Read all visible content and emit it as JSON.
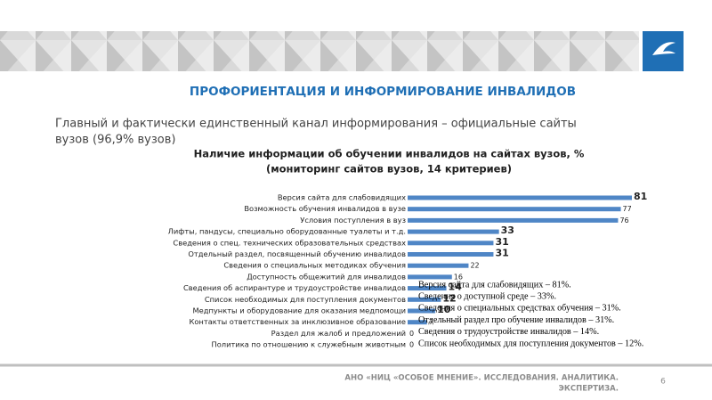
{
  "slide": {
    "title": "ПРОФОРИЕНТАЦИЯ И ИНФОРМИРОВАНИЕ ИНВАЛИДОВ",
    "subtitle_lines": [
      "Главный и фактически единственный канал информирования – официальные сайты",
      "вузов (96,9% вузов)"
    ],
    "notes": [
      "Версия сайта для слабовидящих – 81%.",
      "Сведения о доступной среде – 33%.",
      "Сведения о специальных  средствах обучения – 31%.",
      "Отдельный раздел про обучение инвалидов – 31%.",
      "Сведения о трудоустройстве инвалидов – 14%.",
      "Список необходимых для поступления документов – 12%."
    ],
    "footer_lines": [
      "АНО «НИЦ «ОСОБОЕ МНЕНИЕ». ИССЛЕДОВАНИЯ. АНАЛИТИКА.",
      "ЭКСПЕРТИЗА."
    ],
    "page_number": "6"
  },
  "chart_data": {
    "type": "hbar",
    "title_lines": [
      "Наличие информации об обучении инвалидов на сайтах вузов, %",
      "(мониторинг сайтов вузов, 14 критериев)"
    ],
    "categories": [
      "Версия сайта для слабовидящих",
      "Возможность обучения инвалидов в вузе",
      "Условия поступления в вуз",
      "Лифты, пандусы, специально оборудованные туалеты и т.д.",
      "Сведения о спец. технических образовательных средствах",
      "Отдельный раздел, посвященный обучению инвалидов",
      "Сведения о специальных методиках обучения",
      "Доступность общежитий для инвалидов",
      "Сведения об аспирантуре и трудоустройстве инвалидов",
      "Список необходимых для поступления документов",
      "Медпункты и оборудование для оказания медпомощи",
      "Контакты ответственных за инклюзивное образование",
      "Раздел для жалоб и предложений",
      "Политика по отношению к служебным животным"
    ],
    "values": [
      81,
      77,
      76,
      33,
      31,
      31,
      22,
      16,
      14,
      12,
      10,
      7,
      0,
      0
    ],
    "color": "#4f86c6"
  }
}
